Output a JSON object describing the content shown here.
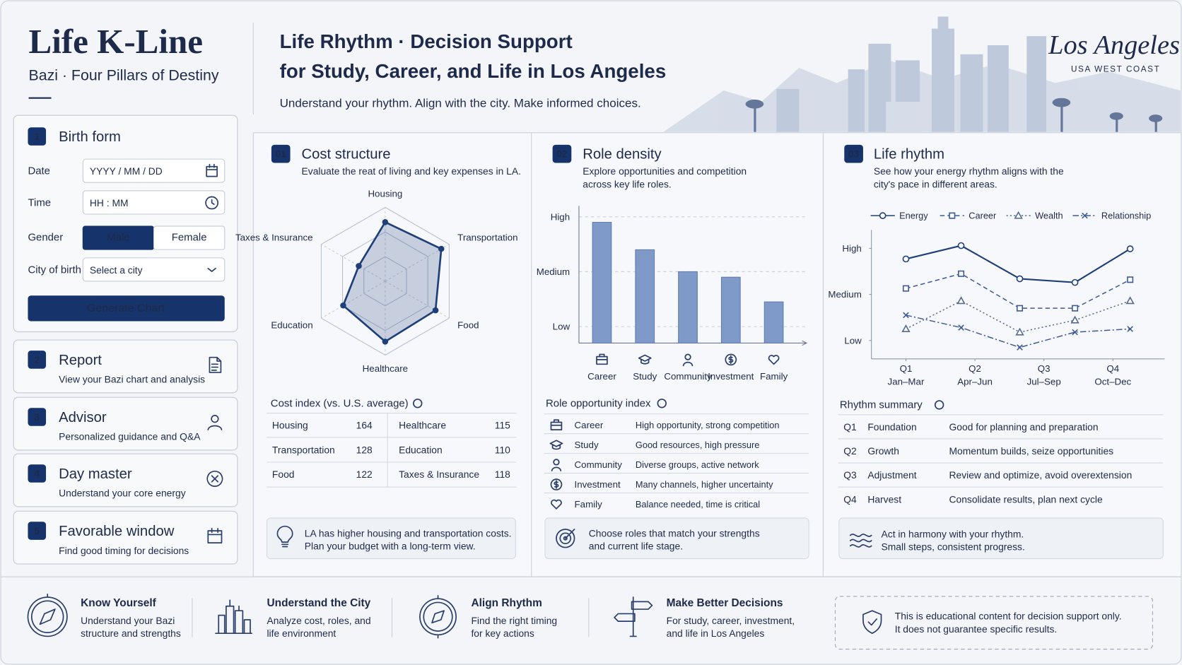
{
  "brand": {
    "title": "Life K-Line",
    "subtitle": "Bazi · Four Pillars of Destiny"
  },
  "header": {
    "title": [
      "Life Rhythm · Decision Support",
      "for Study, Career, and Life in Los Angeles"
    ],
    "tagline": "Understand your rhythm. Align with the city. Make informed choices.",
    "city": "Los Angeles",
    "region": "USA WEST COAST"
  },
  "birth_form": {
    "number": "1",
    "title": "Birth form",
    "fields": [
      {
        "label": "Date",
        "placeholder": "YYYY / MM / DD"
      },
      {
        "label": "Time",
        "placeholder": "HH : MM"
      },
      {
        "label": "City of birth",
        "placeholder": "Select a city"
      }
    ],
    "gender": {
      "label": "Gender",
      "options": [
        "Male",
        "Female"
      ],
      "selected": 0
    },
    "button": "Generate Chart"
  },
  "nav": [
    {
      "number": "2",
      "title": "Report",
      "description": "View your Bazi chart and analysis"
    },
    {
      "number": "3",
      "title": "Advisor",
      "description": "Personalized guidance and Q&A"
    },
    {
      "number": "4",
      "title": "Day master",
      "description": "Understand your core energy"
    },
    {
      "number": "5",
      "title": "Favorable window",
      "description": "Find good timing for decisions"
    }
  ],
  "panels": [
    {
      "number": "01",
      "title": "Cost structure",
      "description": [
        "Evaluate the reat of living and key expenses in LA."
      ],
      "table": {
        "title": "Cost index (vs. U.S. average)",
        "rows": [
          [
            "Housing",
            164,
            "Healthcare",
            115
          ],
          [
            "Transportation",
            128,
            "Education",
            110
          ],
          [
            "Food",
            122,
            "Taxes & Insurance",
            118
          ]
        ]
      },
      "note": [
        "LA has higher housing and transportation costs.",
        "Plan your budget with a long-term view."
      ]
    },
    {
      "number": "02",
      "title": "Role density",
      "description": [
        "Explore opportunities and competition",
        "across key life roles."
      ],
      "table": {
        "title": "Role opportunity index",
        "rows": [
          [
            "Career",
            "High opportunity, strong competition"
          ],
          [
            "Study",
            "Good resources, high pressure"
          ],
          [
            "Community",
            "Diverse groups, active network"
          ],
          [
            "Investment",
            "Many channels, higher uncertainty"
          ],
          [
            "Family",
            "Balance needed, time is critical"
          ]
        ]
      },
      "note": [
        "Choose roles that match your strengths",
        "and current life stage."
      ]
    },
    {
      "number": "03",
      "title": "Life rhythm",
      "description": [
        "See how your energy rhythm aligns with the",
        "city's pace in different areas."
      ],
      "table": {
        "title": "Rhythm summary",
        "rows": [
          [
            "Q1",
            "Foundation",
            "Good for planning and preparation"
          ],
          [
            "Q2",
            "Growth",
            "Momentum builds, seize opportunities"
          ],
          [
            "Q3",
            "Adjustment",
            "Review and optimize, avoid overextension"
          ],
          [
            "Q4",
            "Harvest",
            "Consolidate results, plan next cycle"
          ]
        ]
      },
      "note": [
        "Act in harmony with your rhythm.",
        "Small steps, consistent progress."
      ]
    }
  ],
  "chart_data": [
    {
      "type": "radar",
      "categories": [
        "Housing",
        "Transportation",
        "Food",
        "Healthcare",
        "Education",
        "Taxes & Insurance"
      ],
      "values": [
        2.4,
        2.63,
        2.36,
        2.45,
        1.97,
        1.24
      ],
      "rlim": [
        0,
        3
      ],
      "rticks": [
        1,
        2,
        3
      ],
      "color": "#1f3f7a"
    },
    {
      "type": "bar",
      "categories": [
        "Career",
        "Study",
        "Community",
        "Investment",
        "Family"
      ],
      "values": [
        2.9,
        2.4,
        2.0,
        1.9,
        1.45
      ],
      "ylim": [
        0.7,
        3.2
      ],
      "yticks": [
        {
          "value": 1,
          "label": "Low"
        },
        {
          "value": 2,
          "label": "Medium"
        },
        {
          "value": 3,
          "label": "High"
        }
      ],
      "grid": true,
      "color": "#7f99c9"
    },
    {
      "type": "line",
      "x": [
        1,
        1.8,
        2.65,
        3.45,
        4.25
      ],
      "xlim": [
        0.5,
        4.75
      ],
      "xticks": [
        {
          "value": 1,
          "label": "Q1"
        },
        {
          "value": 2,
          "label": "Q2"
        },
        {
          "value": 3,
          "label": "Q3"
        },
        {
          "value": 4,
          "label": "Q4"
        }
      ],
      "xtick_periods": [
        "Jan–Mar",
        "Apr–Jun",
        "Jul–Sep",
        "Oct–Dec"
      ],
      "ylim": [
        0.6,
        3.4
      ],
      "yticks": [
        {
          "value": 1,
          "label": "Low"
        },
        {
          "value": 2,
          "label": "Medium"
        },
        {
          "value": 3,
          "label": "High"
        }
      ],
      "grid": false,
      "series": [
        {
          "name": "Energy",
          "color": "#1f3f7a",
          "style": "solid",
          "marker": "circle",
          "values": [
            2.77,
            3.06,
            2.34,
            2.26,
            2.99
          ]
        },
        {
          "name": "Career",
          "color": "#3c5a96",
          "style": "dashed",
          "marker": "square",
          "values": [
            2.13,
            2.45,
            1.7,
            1.7,
            2.32
          ]
        },
        {
          "name": "Wealth",
          "color": "#56698f",
          "style": "dotted",
          "marker": "triangle",
          "values": [
            1.25,
            1.86,
            1.18,
            1.44,
            1.86
          ]
        },
        {
          "name": "Relationship",
          "color": "#3c5a96",
          "style": "dashdot",
          "marker": "x",
          "values": [
            1.55,
            1.28,
            0.85,
            1.18,
            1.25
          ]
        }
      ]
    }
  ],
  "footer": {
    "features": [
      {
        "title": "Know Yourself",
        "description": [
          "Understand your Bazi",
          "structure and strengths"
        ]
      },
      {
        "title": "Understand the City",
        "description": [
          "Analyze cost, roles, and",
          "life environment"
        ]
      },
      {
        "title": "Align Rhythm",
        "description": [
          "Find the right timing",
          "for key actions"
        ]
      },
      {
        "title": "Make Better Decisions",
        "description": [
          "For study, career, investment,",
          "and life in Los Angeles"
        ]
      }
    ],
    "disclaimer": [
      "This is educational content for decision support only.",
      "It does not guarantee specific results."
    ]
  }
}
